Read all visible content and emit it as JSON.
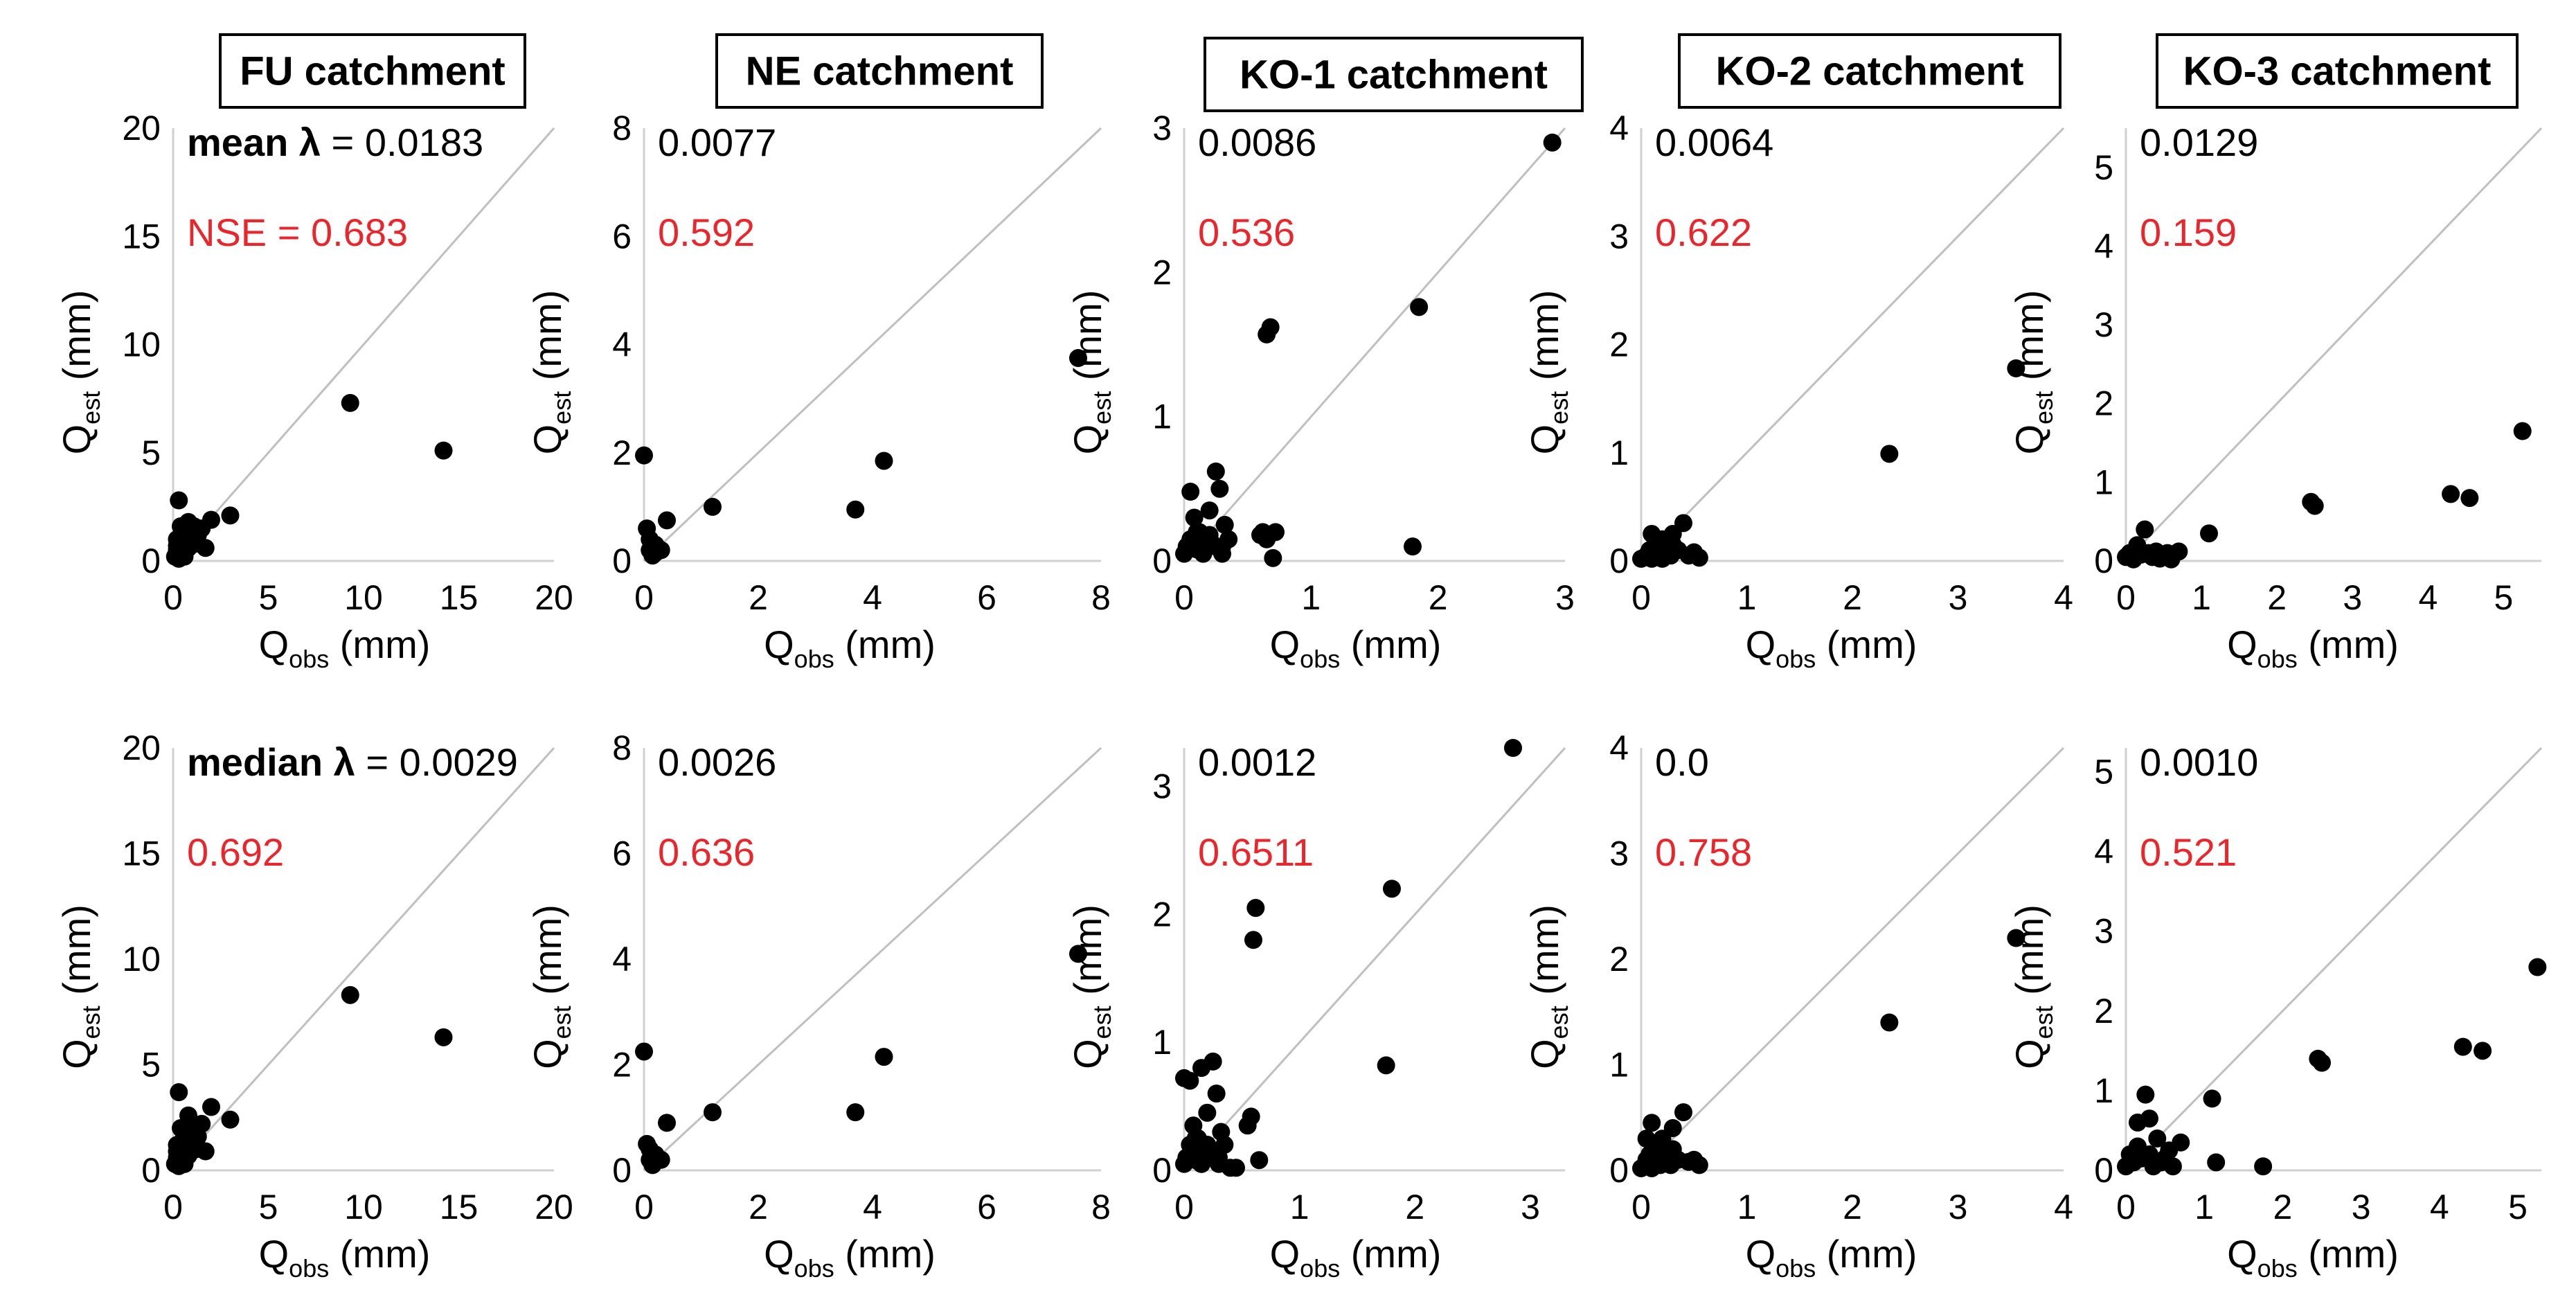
{
  "colors": {
    "text": "#000000",
    "nse": "#e8262c",
    "reference_line": "#bfbfbf",
    "axis": "#d0d0d0",
    "points": "#000000"
  },
  "row_labels": {
    "mean": "mean λ",
    "median": "median λ"
  },
  "chart_data": [
    {
      "type": "scatter",
      "catchment": "FU catchment",
      "row": "mean",
      "lambda_label": "mean λ",
      "lambda_value": "0.0183",
      "nse_label": "NSE",
      "nse_value": "0.683",
      "xlabel": "Qobs (mm)",
      "ylabel": "Qest (mm)",
      "xlim": [
        0,
        20
      ],
      "ylim": [
        0,
        20
      ],
      "xticks": [
        0,
        5,
        10,
        15,
        20
      ],
      "yticks": [
        0,
        5,
        10,
        15,
        20
      ],
      "x": [
        0.1,
        0.2,
        0.2,
        0.3,
        0.4,
        0.4,
        0.5,
        0.6,
        0.7,
        0.8,
        1.0,
        1.2,
        1.3,
        1.5,
        1.7,
        2.0,
        3.0,
        9.3,
        14.2,
        0.3,
        0.8,
        0.5,
        1.1,
        0.2
      ],
      "y": [
        0.2,
        0.5,
        1.0,
        2.8,
        0.3,
        1.6,
        0.9,
        0.2,
        1.4,
        0.6,
        1.6,
        0.8,
        1.2,
        1.5,
        0.6,
        1.9,
        2.1,
        7.3,
        5.1,
        0.1,
        1.8,
        1.2,
        1.6,
        0.7
      ]
    },
    {
      "type": "scatter",
      "catchment": "NE catchment",
      "row": "mean",
      "lambda_label": "",
      "lambda_value": "0.0077",
      "nse_label": "",
      "nse_value": "0.592",
      "xlabel": "Qobs (mm)",
      "ylabel": "Qest (mm)",
      "xlim": [
        0,
        8
      ],
      "ylim": [
        0,
        8
      ],
      "xticks": [
        0,
        2,
        4,
        6,
        8
      ],
      "yticks": [
        0,
        2,
        4,
        6,
        8
      ],
      "x": [
        0.0,
        0.05,
        0.1,
        0.1,
        0.15,
        0.2,
        0.2,
        0.3,
        0.4,
        1.2,
        3.7,
        4.2,
        7.6
      ],
      "y": [
        1.95,
        0.6,
        0.2,
        0.4,
        0.1,
        0.3,
        0.15,
        0.2,
        0.75,
        1.0,
        0.95,
        1.85,
        3.75
      ]
    },
    {
      "type": "scatter",
      "catchment": "KO-1 catchment",
      "row": "mean",
      "lambda_label": "",
      "lambda_value": "0.0086",
      "nse_label": "",
      "nse_value": "0.536",
      "xlabel": "Qobs (mm)",
      "ylabel": "Qest (mm)",
      "xlim": [
        0,
        3
      ],
      "ylim": [
        0,
        3
      ],
      "xticks": [
        0,
        1,
        2,
        3
      ],
      "yticks": [
        0,
        1,
        2,
        3
      ],
      "x": [
        0.0,
        0.02,
        0.05,
        0.08,
        0.1,
        0.12,
        0.15,
        0.18,
        0.2,
        0.22,
        0.25,
        0.28,
        0.3,
        0.32,
        0.35,
        0.05,
        0.1,
        0.15,
        0.2,
        0.25,
        0.3,
        0.6,
        0.62,
        0.65,
        0.68,
        0.7,
        0.72,
        0.65,
        1.8,
        1.85,
        2.9,
        0.08
      ],
      "y": [
        0.05,
        0.1,
        0.15,
        0.12,
        0.08,
        0.2,
        0.05,
        0.1,
        0.35,
        0.12,
        0.62,
        0.5,
        0.1,
        0.25,
        0.15,
        0.48,
        0.2,
        0.05,
        0.18,
        0.1,
        0.05,
        0.18,
        0.2,
        1.57,
        1.62,
        0.02,
        0.2,
        0.15,
        0.1,
        1.76,
        2.9,
        0.3
      ]
    },
    {
      "type": "scatter",
      "catchment": "KO-2 catchment",
      "row": "mean",
      "lambda_label": "",
      "lambda_value": "0.0064",
      "nse_label": "",
      "nse_value": "0.622",
      "xlabel": "Qobs (mm)",
      "ylabel": "Qest (mm)",
      "xlim": [
        0,
        4
      ],
      "ylim": [
        0,
        4
      ],
      "xticks": [
        0,
        1,
        2,
        3,
        4
      ],
      "yticks": [
        0,
        1,
        2,
        3,
        4
      ],
      "x": [
        0.0,
        0.05,
        0.08,
        0.1,
        0.12,
        0.15,
        0.18,
        0.2,
        0.22,
        0.25,
        0.28,
        0.3,
        0.35,
        0.4,
        0.45,
        0.5,
        0.55,
        0.1,
        0.2,
        0.3,
        2.35,
        3.55
      ],
      "y": [
        0.02,
        0.05,
        0.1,
        0.25,
        0.08,
        0.15,
        0.05,
        0.2,
        0.1,
        0.12,
        0.05,
        0.25,
        0.1,
        0.35,
        0.05,
        0.08,
        0.03,
        0.02,
        0.02,
        0.15,
        0.99,
        1.78
      ]
    },
    {
      "type": "scatter",
      "catchment": "KO-3 catchment",
      "row": "mean",
      "lambda_label": "",
      "lambda_value": "0.0129",
      "nse_label": "",
      "nse_value": "0.159",
      "xlabel": "Qobs (mm)",
      "ylabel": "Qest (mm)",
      "xlim": [
        0,
        5.5
      ],
      "ylim": [
        0,
        5.5
      ],
      "xticks": [
        0,
        1,
        2,
        3,
        4,
        5
      ],
      "yticks": [
        0,
        1,
        2,
        3,
        4,
        5
      ],
      "x": [
        0.0,
        0.05,
        0.1,
        0.15,
        0.2,
        0.25,
        0.3,
        0.35,
        0.4,
        0.45,
        0.5,
        0.55,
        0.6,
        0.7,
        1.1,
        2.45,
        2.5,
        4.3,
        4.55,
        5.25,
        0.15
      ],
      "y": [
        0.05,
        0.1,
        0.02,
        0.15,
        0.08,
        0.4,
        0.1,
        0.05,
        0.12,
        0.03,
        0.05,
        0.1,
        0.02,
        0.12,
        0.35,
        0.75,
        0.7,
        0.85,
        0.8,
        1.65,
        0.2
      ]
    },
    {
      "type": "scatter",
      "catchment": "FU catchment",
      "row": "median",
      "lambda_label": "median λ",
      "lambda_value": "0.0029",
      "nse_label": "",
      "nse_value": "0.692",
      "xlabel": "Qobs (mm)",
      "ylabel": "Qest (mm)",
      "xlim": [
        0,
        20
      ],
      "ylim": [
        0,
        20
      ],
      "xticks": [
        0,
        5,
        10,
        15,
        20
      ],
      "yticks": [
        0,
        5,
        10,
        15,
        20
      ],
      "x": [
        0.1,
        0.2,
        0.2,
        0.3,
        0.4,
        0.4,
        0.5,
        0.6,
        0.7,
        0.8,
        1.0,
        1.2,
        1.3,
        1.5,
        1.7,
        2.0,
        3.0,
        9.3,
        14.2,
        0.3,
        0.8,
        0.5,
        1.1,
        0.2
      ],
      "y": [
        0.3,
        0.6,
        1.2,
        3.7,
        0.4,
        2.0,
        1.1,
        0.3,
        1.7,
        0.7,
        2.2,
        1.0,
        1.6,
        2.2,
        0.9,
        3.0,
        2.4,
        8.3,
        6.3,
        0.2,
        2.6,
        1.4,
        1.9,
        0.9
      ]
    },
    {
      "type": "scatter",
      "catchment": "NE catchment",
      "row": "median",
      "lambda_label": "",
      "lambda_value": "0.0026",
      "nse_label": "",
      "nse_value": "0.636",
      "xlabel": "Qobs (mm)",
      "ylabel": "Qest (mm)",
      "xlim": [
        0,
        8
      ],
      "ylim": [
        0,
        8
      ],
      "xticks": [
        0,
        2,
        4,
        6,
        8
      ],
      "yticks": [
        0,
        2,
        4,
        6,
        8
      ],
      "x": [
        0.0,
        0.05,
        0.1,
        0.1,
        0.15,
        0.2,
        0.2,
        0.3,
        0.4,
        1.2,
        3.7,
        4.2,
        7.6
      ],
      "y": [
        2.25,
        0.5,
        0.2,
        0.4,
        0.1,
        0.3,
        0.25,
        0.2,
        0.9,
        1.1,
        1.1,
        2.15,
        4.1
      ]
    },
    {
      "type": "scatter",
      "catchment": "KO-1 catchment",
      "row": "median",
      "lambda_label": "",
      "lambda_value": "0.0012",
      "nse_label": "",
      "nse_value": "0.6511",
      "xlabel": "Qobs (mm)",
      "ylabel": "Qest (mm)",
      "xlim": [
        0,
        3.3
      ],
      "ylim": [
        0,
        3.3
      ],
      "xticks": [
        0,
        1,
        2,
        3
      ],
      "yticks": [
        0,
        1,
        2,
        3
      ],
      "x": [
        0.0,
        0.02,
        0.05,
        0.08,
        0.1,
        0.12,
        0.15,
        0.18,
        0.2,
        0.22,
        0.25,
        0.28,
        0.3,
        0.32,
        0.35,
        0.05,
        0.1,
        0.15,
        0.2,
        0.25,
        0.3,
        0.55,
        0.58,
        0.6,
        0.62,
        0.65,
        0.4,
        0.45,
        1.75,
        1.8,
        2.85,
        0.08,
        0.0,
        0.15
      ],
      "y": [
        0.05,
        0.1,
        0.2,
        0.15,
        0.08,
        0.25,
        0.05,
        0.12,
        0.45,
        0.15,
        0.85,
        0.6,
        0.1,
        0.3,
        0.2,
        0.7,
        0.25,
        0.05,
        0.2,
        0.1,
        0.05,
        0.35,
        0.42,
        1.8,
        2.05,
        0.08,
        0.02,
        0.02,
        0.82,
        2.2,
        3.3,
        0.35,
        0.72,
        0.8
      ]
    },
    {
      "type": "scatter",
      "catchment": "KO-2 catchment",
      "row": "median",
      "lambda_label": "",
      "lambda_value": "0.0",
      "nse_label": "",
      "nse_value": "0.758",
      "xlabel": "Qobs (mm)",
      "ylabel": "Qest (mm)",
      "xlim": [
        0,
        4
      ],
      "ylim": [
        0,
        4
      ],
      "xticks": [
        0,
        1,
        2,
        3,
        4
      ],
      "yticks": [
        0,
        1,
        2,
        3,
        4
      ],
      "x": [
        0.0,
        0.05,
        0.08,
        0.1,
        0.12,
        0.15,
        0.18,
        0.2,
        0.22,
        0.25,
        0.28,
        0.3,
        0.35,
        0.4,
        0.45,
        0.5,
        0.55,
        0.1,
        0.2,
        0.3,
        2.35,
        3.55,
        0.05
      ],
      "y": [
        0.02,
        0.1,
        0.15,
        0.45,
        0.1,
        0.2,
        0.05,
        0.3,
        0.12,
        0.15,
        0.05,
        0.4,
        0.1,
        0.55,
        0.08,
        0.1,
        0.05,
        0.02,
        0.25,
        0.2,
        1.4,
        2.2,
        0.3
      ]
    },
    {
      "type": "scatter",
      "catchment": "KO-3 catchment",
      "row": "median",
      "lambda_label": "",
      "lambda_value": "0.0010",
      "nse_label": "",
      "nse_value": "0.521",
      "xlabel": "Qobs (mm)",
      "ylabel": "Qest (mm)",
      "xlim": [
        0,
        5.3
      ],
      "ylim": [
        0,
        5.3
      ],
      "xticks": [
        0,
        1,
        2,
        3,
        4,
        5
      ],
      "yticks": [
        0,
        1,
        2,
        3,
        4,
        5
      ],
      "x": [
        0.0,
        0.05,
        0.1,
        0.15,
        0.2,
        0.25,
        0.3,
        0.35,
        0.4,
        0.45,
        0.5,
        0.55,
        0.6,
        0.7,
        1.1,
        1.15,
        1.75,
        2.45,
        2.5,
        4.3,
        4.55,
        5.25,
        0.15,
        0.3
      ],
      "y": [
        0.05,
        0.2,
        0.1,
        0.3,
        0.15,
        0.95,
        0.2,
        0.05,
        0.4,
        0.1,
        0.15,
        0.25,
        0.05,
        0.35,
        0.9,
        0.1,
        0.05,
        1.4,
        1.35,
        1.55,
        1.5,
        2.55,
        0.6,
        0.65
      ]
    }
  ]
}
